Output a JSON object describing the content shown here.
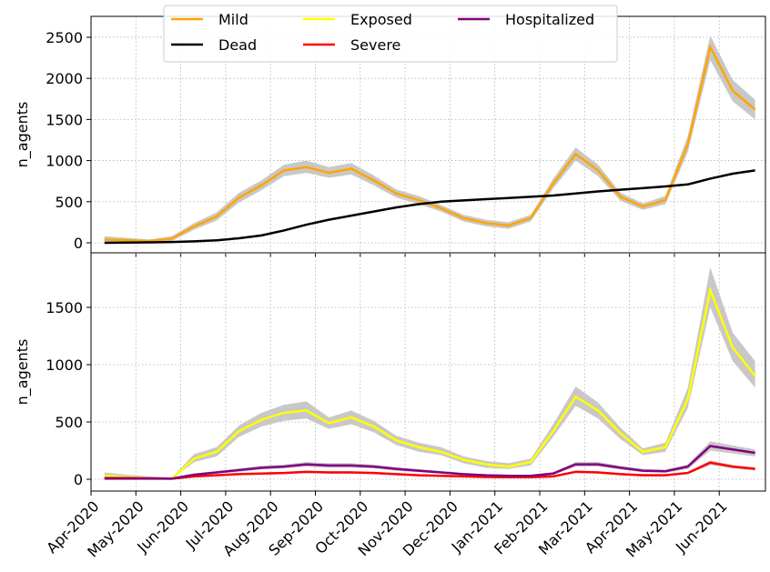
{
  "chart_data": [
    {
      "type": "line",
      "ylabel": "n_agents",
      "x": [
        0.3,
        0.8,
        1.3,
        1.8,
        2.3,
        2.8,
        3.3,
        3.8,
        4.3,
        4.8,
        5.3,
        5.8,
        6.3,
        6.8,
        7.3,
        7.8,
        8.3,
        8.8,
        9.3,
        9.8,
        10.3,
        10.8,
        11.3,
        11.8,
        12.3,
        12.8,
        13.3,
        13.8,
        14.3,
        14.8
      ],
      "ylim": [
        -122,
        2754
      ],
      "yticks": [
        0,
        500,
        1000,
        1500,
        2000,
        2500
      ],
      "grid": true,
      "series": [
        {
          "name": "Mild",
          "color": "#ffa500",
          "values": [
            40,
            30,
            20,
            50,
            200,
            320,
            550,
            700,
            880,
            920,
            850,
            900,
            760,
            600,
            520,
            420,
            300,
            240,
            210,
            300,
            720,
            1080,
            880,
            560,
            440,
            520,
            1200,
            2380,
            1850,
            1620
          ],
          "lower": [
            10,
            10,
            5,
            20,
            160,
            270,
            490,
            640,
            810,
            850,
            790,
            830,
            700,
            550,
            470,
            380,
            260,
            200,
            170,
            260,
            660,
            1000,
            810,
            510,
            400,
            470,
            1100,
            2220,
            1720,
            1500
          ],
          "upper": [
            80,
            60,
            40,
            80,
            240,
            370,
            610,
            760,
            950,
            1000,
            920,
            970,
            820,
            650,
            570,
            460,
            340,
            280,
            250,
            340,
            780,
            1160,
            950,
            610,
            480,
            570,
            1300,
            2520,
            1980,
            1740
          ]
        },
        {
          "name": "Dead",
          "color": "#000000",
          "values": [
            0,
            2,
            5,
            10,
            18,
            30,
            55,
            90,
            150,
            220,
            280,
            330,
            380,
            430,
            470,
            500,
            515,
            530,
            545,
            560,
            575,
            600,
            625,
            645,
            665,
            685,
            710,
            780,
            840,
            880
          ]
        }
      ]
    },
    {
      "type": "line",
      "ylabel": "n_agents",
      "x": [
        0.3,
        0.8,
        1.3,
        1.8,
        2.3,
        2.8,
        3.3,
        3.8,
        4.3,
        4.8,
        5.3,
        5.8,
        6.3,
        6.8,
        7.3,
        7.8,
        8.3,
        8.8,
        9.3,
        9.8,
        10.3,
        10.8,
        11.3,
        11.8,
        12.3,
        12.8,
        13.3,
        13.8,
        14.3,
        14.8
      ],
      "xlim": [
        0,
        15.03
      ],
      "xticks": [
        {
          "value": 0,
          "label": "Apr-2020"
        },
        {
          "value": 1,
          "label": "May-2020"
        },
        {
          "value": 2,
          "label": "Jun-2020"
        },
        {
          "value": 3,
          "label": "Jul-2020"
        },
        {
          "value": 4,
          "label": "Aug-2020"
        },
        {
          "value": 5,
          "label": "Sep-2020"
        },
        {
          "value": 6,
          "label": "Oct-2020"
        },
        {
          "value": 7,
          "label": "Nov-2020"
        },
        {
          "value": 8,
          "label": "Dec-2020"
        },
        {
          "value": 9,
          "label": "Jan-2021"
        },
        {
          "value": 10,
          "label": "Feb-2021"
        },
        {
          "value": 11,
          "label": "Mar-2021"
        },
        {
          "value": 12,
          "label": "Apr-2021"
        },
        {
          "value": 13,
          "label": "May-2021"
        },
        {
          "value": 14,
          "label": "Jun-2021"
        }
      ],
      "ylim": [
        -103,
        1976
      ],
      "yticks": [
        0,
        500,
        1000,
        1500
      ],
      "grid": true,
      "series": [
        {
          "name": "Exposed",
          "color": "#ffff00",
          "values": [
            30,
            20,
            10,
            5,
            180,
            240,
            420,
            520,
            580,
            600,
            490,
            540,
            460,
            340,
            280,
            240,
            170,
            130,
            110,
            150,
            420,
            720,
            600,
            400,
            240,
            280,
            700,
            1650,
            1150,
            900
          ],
          "lower": [
            10,
            5,
            0,
            0,
            150,
            200,
            370,
            460,
            510,
            530,
            440,
            480,
            410,
            300,
            240,
            210,
            140,
            100,
            90,
            120,
            370,
            640,
            530,
            350,
            210,
            240,
            620,
            1500,
            1030,
            800
          ],
          "upper": [
            60,
            40,
            25,
            15,
            220,
            280,
            470,
            580,
            650,
            680,
            540,
            600,
            510,
            380,
            320,
            280,
            200,
            160,
            140,
            180,
            480,
            810,
            670,
            450,
            270,
            320,
            800,
            1850,
            1280,
            1030
          ]
        },
        {
          "name": "Severe",
          "color": "#ff0000",
          "values": [
            5,
            5,
            5,
            5,
            25,
            35,
            45,
            50,
            55,
            65,
            60,
            60,
            55,
            45,
            35,
            30,
            25,
            20,
            18,
            18,
            25,
            65,
            60,
            45,
            35,
            35,
            55,
            145,
            110,
            90
          ],
          "lower": [
            0,
            0,
            0,
            0,
            17,
            27,
            36,
            40,
            45,
            55,
            50,
            50,
            45,
            36,
            27,
            22,
            17,
            12,
            10,
            10,
            17,
            55,
            50,
            36,
            27,
            27,
            45,
            125,
            95,
            78
          ],
          "upper": [
            12,
            12,
            12,
            12,
            33,
            45,
            55,
            60,
            65,
            75,
            70,
            70,
            65,
            55,
            45,
            38,
            33,
            28,
            26,
            26,
            33,
            75,
            70,
            55,
            45,
            45,
            65,
            165,
            125,
            105
          ]
        },
        {
          "name": "Hospitalized",
          "color": "#800080",
          "values": [
            10,
            10,
            8,
            5,
            40,
            60,
            80,
            100,
            110,
            130,
            120,
            120,
            110,
            90,
            75,
            60,
            45,
            35,
            30,
            30,
            50,
            130,
            130,
            100,
            75,
            70,
            110,
            290,
            260,
            230
          ],
          "lower": [
            0,
            0,
            0,
            0,
            30,
            50,
            65,
            85,
            95,
            110,
            100,
            100,
            95,
            75,
            62,
            50,
            36,
            27,
            22,
            22,
            40,
            110,
            110,
            85,
            62,
            58,
            90,
            250,
            225,
            200
          ],
          "upper": [
            20,
            20,
            18,
            15,
            50,
            72,
            95,
            118,
            128,
            150,
            140,
            140,
            128,
            105,
            88,
            72,
            55,
            45,
            40,
            40,
            62,
            150,
            150,
            118,
            90,
            84,
            130,
            330,
            295,
            260
          ]
        }
      ]
    }
  ]
}
